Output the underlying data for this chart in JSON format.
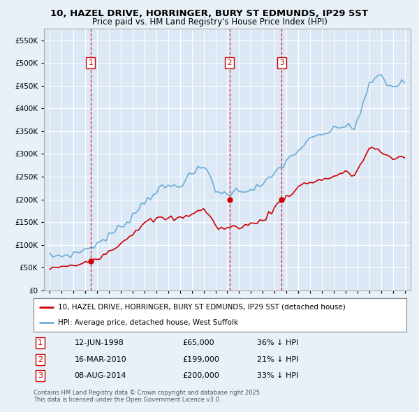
{
  "title": "10, HAZEL DRIVE, HORRINGER, BURY ST EDMUNDS, IP29 5ST",
  "subtitle": "Price paid vs. HM Land Registry's House Price Index (HPI)",
  "background_color": "#e8f0f8",
  "plot_bg_color": "#dce8f5",
  "grid_color": "#ffffff",
  "legend_line1": "10, HAZEL DRIVE, HORRINGER, BURY ST EDMUNDS, IP29 5ST (detached house)",
  "legend_line2": "HPI: Average price, detached house, West Suffolk",
  "footnote": "Contains HM Land Registry data © Crown copyright and database right 2025.\nThis data is licensed under the Open Government Licence v3.0.",
  "sales": [
    {
      "num": 1,
      "date": "12-JUN-1998",
      "price": 65000,
      "pct": "36%",
      "dir": "↓",
      "x_year": 1998.45
    },
    {
      "num": 2,
      "date": "16-MAR-2010",
      "price": 199000,
      "pct": "21%",
      "dir": "↓",
      "x_year": 2010.2
    },
    {
      "num": 3,
      "date": "08-AUG-2014",
      "price": 200000,
      "pct": "33%",
      "dir": "↓",
      "x_year": 2014.6
    }
  ],
  "hpi_color": "#6baed6",
  "price_color": "#cc0000",
  "marker_box_color": "#cc0000",
  "ylim": [
    0,
    575000
  ],
  "yticks": [
    0,
    50000,
    100000,
    150000,
    200000,
    250000,
    300000,
    350000,
    400000,
    450000,
    500000,
    550000
  ],
  "xlim": [
    1994.5,
    2025.5
  ],
  "hpi_data": {
    "years": [
      1995,
      1995.25,
      1995.5,
      1995.75,
      1996,
      1996.25,
      1996.5,
      1996.75,
      1997,
      1997.25,
      1997.5,
      1997.75,
      1998,
      1998.25,
      1998.5,
      1998.75,
      1999,
      1999.25,
      1999.5,
      1999.75,
      2000,
      2000.25,
      2000.5,
      2000.75,
      2001,
      2001.25,
      2001.5,
      2001.75,
      2002,
      2002.25,
      2002.5,
      2002.75,
      2003,
      2003.25,
      2003.5,
      2003.75,
      2004,
      2004.25,
      2004.5,
      2004.75,
      2005,
      2005.25,
      2005.5,
      2005.75,
      2006,
      2006.25,
      2006.5,
      2006.75,
      2007,
      2007.25,
      2007.5,
      2007.75,
      2008,
      2008.25,
      2008.5,
      2008.75,
      2009,
      2009.25,
      2009.5,
      2009.75,
      2010,
      2010.25,
      2010.5,
      2010.75,
      2011,
      2011.25,
      2011.5,
      2011.75,
      2012,
      2012.25,
      2012.5,
      2012.75,
      2013,
      2013.25,
      2013.5,
      2013.75,
      2014,
      2014.25,
      2014.5,
      2014.75,
      2015,
      2015.25,
      2015.5,
      2015.75,
      2016,
      2016.25,
      2016.5,
      2016.75,
      2017,
      2017.25,
      2017.5,
      2017.75,
      2018,
      2018.25,
      2018.5,
      2018.75,
      2019,
      2019.25,
      2019.5,
      2019.75,
      2020,
      2020.25,
      2020.5,
      2020.75,
      2021,
      2021.25,
      2021.5,
      2021.75,
      2022,
      2022.25,
      2022.5,
      2022.75,
      2023,
      2023.25,
      2023.5,
      2023.75,
      2024,
      2024.25,
      2024.5,
      2024.75,
      2025
    ],
    "values": [
      75000,
      75500,
      76000,
      76500,
      77000,
      77500,
      78000,
      79000,
      80000,
      82000,
      85000,
      88000,
      90000,
      93000,
      96000,
      99000,
      103000,
      107000,
      111000,
      115000,
      120000,
      125000,
      130000,
      135000,
      140000,
      146000,
      152000,
      158000,
      165000,
      172000,
      180000,
      188000,
      196000,
      202000,
      208000,
      213000,
      218000,
      222000,
      225000,
      227000,
      228000,
      229000,
      230000,
      231000,
      234000,
      238000,
      243000,
      249000,
      255000,
      260000,
      265000,
      268000,
      270000,
      265000,
      255000,
      240000,
      222000,
      215000,
      213000,
      212000,
      213000,
      215000,
      217000,
      218000,
      219000,
      220000,
      221000,
      222000,
      223000,
      225000,
      227000,
      229000,
      232000,
      237000,
      243000,
      250000,
      257000,
      265000,
      272000,
      278000,
      284000,
      290000,
      296000,
      302000,
      308000,
      315000,
      320000,
      325000,
      330000,
      335000,
      338000,
      340000,
      342000,
      345000,
      348000,
      350000,
      352000,
      355000,
      358000,
      361000,
      363000,
      366000,
      355000,
      360000,
      375000,
      390000,
      410000,
      430000,
      450000,
      460000,
      468000,
      472000,
      470000,
      462000,
      455000,
      450000,
      448000,
      450000,
      453000,
      456000,
      458000
    ]
  },
  "price_data": {
    "years": [
      1995,
      1995.25,
      1995.5,
      1995.75,
      1996,
      1996.25,
      1996.5,
      1996.75,
      1997,
      1997.25,
      1997.5,
      1997.75,
      1998,
      1998.25,
      1998.5,
      1998.75,
      1999,
      1999.25,
      1999.5,
      1999.75,
      2000,
      2000.25,
      2000.5,
      2000.75,
      2001,
      2001.25,
      2001.5,
      2001.75,
      2002,
      2002.25,
      2002.5,
      2002.75,
      2003,
      2003.25,
      2003.5,
      2003.75,
      2004,
      2004.25,
      2004.5,
      2004.75,
      2005,
      2005.25,
      2005.5,
      2005.75,
      2006,
      2006.25,
      2006.5,
      2006.75,
      2007,
      2007.25,
      2007.5,
      2007.75,
      2008,
      2008.25,
      2008.5,
      2008.75,
      2009,
      2009.25,
      2009.5,
      2009.75,
      2010,
      2010.25,
      2010.5,
      2010.75,
      2011,
      2011.25,
      2011.5,
      2011.75,
      2012,
      2012.25,
      2012.5,
      2012.75,
      2013,
      2013.25,
      2013.5,
      2013.75,
      2014,
      2014.25,
      2014.5,
      2014.75,
      2015,
      2015.25,
      2015.5,
      2015.75,
      2016,
      2016.25,
      2016.5,
      2016.75,
      2017,
      2017.25,
      2017.5,
      2017.75,
      2018,
      2018.25,
      2018.5,
      2018.75,
      2019,
      2019.25,
      2019.5,
      2019.75,
      2020,
      2020.25,
      2020.5,
      2020.75,
      2021,
      2021.25,
      2021.5,
      2021.75,
      2022,
      2022.25,
      2022.5,
      2022.75,
      2023,
      2023.25,
      2023.5,
      2023.75,
      2024,
      2024.25,
      2024.5,
      2024.75,
      2025
    ],
    "values": [
      49000,
      49500,
      50000,
      50500,
      51000,
      51500,
      52000,
      53000,
      54000,
      56000,
      58000,
      61000,
      63000,
      65000,
      67000,
      69000,
      72000,
      75000,
      78000,
      82000,
      86000,
      90000,
      95000,
      100000,
      105000,
      110000,
      115000,
      120000,
      126000,
      132000,
      138000,
      143000,
      147000,
      150000,
      153000,
      155000,
      157000,
      158000,
      158000,
      158000,
      158000,
      158000,
      158000,
      158000,
      159000,
      161000,
      163000,
      166000,
      170000,
      173000,
      175000,
      176000,
      177000,
      173000,
      165000,
      153000,
      142000,
      138000,
      137000,
      136000,
      137000,
      138000,
      139000,
      140000,
      141000,
      142000,
      143000,
      144000,
      145000,
      147000,
      149000,
      152000,
      156000,
      161000,
      167000,
      174000,
      181000,
      189000,
      196000,
      201000,
      206000,
      211000,
      216000,
      221000,
      226000,
      231000,
      234000,
      236000,
      238000,
      240000,
      241000,
      242000,
      243000,
      245000,
      247000,
      249000,
      251000,
      253000,
      255000,
      257000,
      258000,
      260000,
      252000,
      256000,
      265000,
      275000,
      288000,
      300000,
      310000,
      315000,
      312000,
      308000,
      303000,
      298000,
      294000,
      291000,
      289000,
      291000,
      293000,
      295000,
      297000
    ]
  }
}
